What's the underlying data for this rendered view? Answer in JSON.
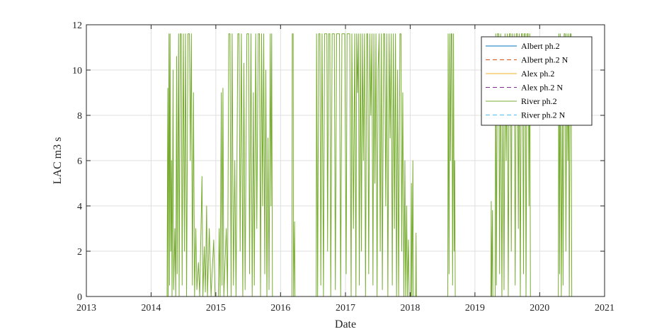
{
  "chart_data": {
    "type": "line",
    "title": "",
    "xlabel": "Date",
    "ylabel": "LAC m3 s",
    "xlim": [
      "2013-01-01",
      "2021-01-01"
    ],
    "ylim": [
      0,
      12
    ],
    "x_ticks": [
      "2013",
      "2014",
      "2015",
      "2016",
      "2017",
      "2018",
      "2019",
      "2020",
      "2021"
    ],
    "y_ticks": [
      "0",
      "2",
      "4",
      "6",
      "8",
      "10",
      "12"
    ],
    "grid": true,
    "legend_position": "top-right",
    "series": [
      {
        "name": "Albert ph.2",
        "color": "#0072BD",
        "dash": "solid",
        "points": []
      },
      {
        "name": "Albert ph.2 N",
        "color": "#D95319",
        "dash": "dashed",
        "points": []
      },
      {
        "name": "Alex ph.2",
        "color": "#EDB120",
        "dash": "solid",
        "points": []
      },
      {
        "name": "Alex ph.2 N",
        "color": "#7E2F8E",
        "dash": "dashed",
        "points": []
      },
      {
        "name": "River ph.2",
        "color": "#77AC30",
        "dash": "solid",
        "points": [
          [
            "2013-01-01",
            0
          ],
          [
            "2014-04-01",
            0
          ],
          [
            "2014-04-05",
            9.2
          ],
          [
            "2014-04-07",
            0
          ],
          [
            "2014-04-12",
            11.6
          ],
          [
            "2014-04-15",
            0.5
          ],
          [
            "2014-04-18",
            11.6
          ],
          [
            "2014-04-22",
            2.0
          ],
          [
            "2014-04-26",
            6.0
          ],
          [
            "2014-04-29",
            0
          ],
          [
            "2014-05-05",
            10.0
          ],
          [
            "2014-05-08",
            0.3
          ],
          [
            "2014-05-15",
            3.0
          ],
          [
            "2014-05-20",
            0
          ],
          [
            "2014-05-25",
            10.6
          ],
          [
            "2014-05-28",
            1.0
          ],
          [
            "2014-06-05",
            11.6
          ],
          [
            "2014-06-08",
            0
          ],
          [
            "2014-06-15",
            11.6
          ],
          [
            "2014-06-20",
            11.6
          ],
          [
            "2014-06-25",
            0.5
          ],
          [
            "2014-07-02",
            11.6
          ],
          [
            "2014-07-08",
            2.0
          ],
          [
            "2014-07-14",
            11.6
          ],
          [
            "2014-07-20",
            0
          ],
          [
            "2014-07-28",
            11.6
          ],
          [
            "2014-08-05",
            11.6
          ],
          [
            "2014-08-10",
            6.0
          ],
          [
            "2014-08-16",
            11.6
          ],
          [
            "2014-08-22",
            0.5
          ],
          [
            "2014-08-28",
            9.0
          ],
          [
            "2014-09-03",
            0
          ],
          [
            "2014-09-10",
            3.0
          ],
          [
            "2014-09-16",
            0.3
          ],
          [
            "2014-09-25",
            1.5
          ],
          [
            "2014-10-02",
            0
          ],
          [
            "2014-10-15",
            5.3
          ],
          [
            "2014-10-20",
            0
          ],
          [
            "2014-10-28",
            2.2
          ],
          [
            "2014-11-03",
            0.2
          ],
          [
            "2014-11-10",
            4.0
          ],
          [
            "2014-11-15",
            0
          ],
          [
            "2014-11-25",
            3.0
          ],
          [
            "2014-12-05",
            0
          ],
          [
            "2014-12-20",
            2.5
          ],
          [
            "2014-12-28",
            0
          ],
          [
            "2015-01-01",
            0
          ],
          [
            "2015-01-15",
            0
          ],
          [
            "2015-01-20",
            3.0
          ],
          [
            "2015-01-25",
            0
          ],
          [
            "2015-02-01",
            9.0
          ],
          [
            "2015-02-05",
            0.5
          ],
          [
            "2015-02-10",
            9.2
          ],
          [
            "2015-02-15",
            0
          ],
          [
            "2015-03-01",
            3.0
          ],
          [
            "2015-03-08",
            0
          ],
          [
            "2015-03-15",
            11.6
          ],
          [
            "2015-03-22",
            11.6
          ],
          [
            "2015-03-28",
            0
          ],
          [
            "2015-04-03",
            11.6
          ],
          [
            "2015-04-10",
            0.5
          ],
          [
            "2015-04-18",
            6.0
          ],
          [
            "2015-04-25",
            0
          ],
          [
            "2015-05-05",
            11.6
          ],
          [
            "2015-05-12",
            11.6
          ],
          [
            "2015-05-18",
            2.0
          ],
          [
            "2015-05-25",
            11.6
          ],
          [
            "2015-06-02",
            0
          ],
          [
            "2015-06-08",
            10.3
          ],
          [
            "2015-06-15",
            0.3
          ],
          [
            "2015-06-25",
            11.6
          ],
          [
            "2015-07-05",
            11.6
          ],
          [
            "2015-07-10",
            1.0
          ],
          [
            "2015-07-18",
            11.6
          ],
          [
            "2015-07-25",
            0
          ],
          [
            "2015-08-01",
            9.0
          ],
          [
            "2015-08-06",
            0.5
          ],
          [
            "2015-08-14",
            11.6
          ],
          [
            "2015-08-20",
            3.0
          ],
          [
            "2015-08-28",
            11.6
          ],
          [
            "2015-09-04",
            11.6
          ],
          [
            "2015-09-10",
            0
          ],
          [
            "2015-09-16",
            11.6
          ],
          [
            "2015-09-22",
            4.0
          ],
          [
            "2015-09-28",
            11.6
          ],
          [
            "2015-10-04",
            1.0
          ],
          [
            "2015-10-10",
            10.0
          ],
          [
            "2015-10-16",
            0
          ],
          [
            "2015-10-22",
            7.0
          ],
          [
            "2015-10-28",
            0.3
          ],
          [
            "2015-11-04",
            11.6
          ],
          [
            "2015-11-08",
            4.0
          ],
          [
            "2015-11-12",
            11.6
          ],
          [
            "2015-11-16",
            0
          ],
          [
            "2016-03-05",
            0
          ],
          [
            "2016-03-07",
            11.6
          ],
          [
            "2016-03-12",
            11.6
          ],
          [
            "2016-03-14",
            0
          ],
          [
            "2016-03-20",
            3.3
          ],
          [
            "2016-03-22",
            0
          ],
          [
            "2016-07-20",
            0
          ],
          [
            "2016-07-22",
            11.6
          ],
          [
            "2016-07-28",
            0
          ],
          [
            "2016-08-03",
            11.6
          ],
          [
            "2016-08-10",
            11.6
          ],
          [
            "2016-08-15",
            0.5
          ],
          [
            "2016-08-22",
            11.6
          ],
          [
            "2016-08-30",
            0
          ],
          [
            "2016-09-05",
            11.6
          ],
          [
            "2016-09-18",
            11.6
          ],
          [
            "2016-09-22",
            2.0
          ],
          [
            "2016-09-28",
            11.6
          ],
          [
            "2016-10-05",
            11.6
          ],
          [
            "2016-10-10",
            0
          ],
          [
            "2016-10-18",
            11.6
          ],
          [
            "2016-10-30",
            11.6
          ],
          [
            "2016-11-05",
            0.3
          ],
          [
            "2016-11-12",
            11.6
          ],
          [
            "2016-11-28",
            11.6
          ],
          [
            "2016-12-05",
            0
          ],
          [
            "2016-12-12",
            11.6
          ],
          [
            "2016-12-28",
            11.6
          ],
          [
            "2017-01-05",
            1.0
          ],
          [
            "2017-01-10",
            11.6
          ],
          [
            "2017-01-25",
            11.6
          ],
          [
            "2017-02-02",
            0
          ],
          [
            "2017-02-06",
            11.6
          ],
          [
            "2017-02-15",
            3.0
          ],
          [
            "2017-02-22",
            11.6
          ],
          [
            "2017-03-01",
            0
          ],
          [
            "2017-03-05",
            11.6
          ],
          [
            "2017-03-10",
            9.0
          ],
          [
            "2017-03-15",
            11.6
          ],
          [
            "2017-03-20",
            0.5
          ],
          [
            "2017-03-26",
            11.6
          ],
          [
            "2017-04-01",
            2.0
          ],
          [
            "2017-04-06",
            11.6
          ],
          [
            "2017-04-12",
            6.0
          ],
          [
            "2017-04-18",
            11.6
          ],
          [
            "2017-04-24",
            0
          ],
          [
            "2017-05-01",
            11.6
          ],
          [
            "2017-05-06",
            11.6
          ],
          [
            "2017-05-12",
            1.0
          ],
          [
            "2017-05-18",
            11.6
          ],
          [
            "2017-05-24",
            8.0
          ],
          [
            "2017-05-30",
            11.6
          ],
          [
            "2017-06-05",
            0.5
          ],
          [
            "2017-06-10",
            11.6
          ],
          [
            "2017-06-16",
            5.0
          ],
          [
            "2017-06-22",
            11.6
          ],
          [
            "2017-06-28",
            0
          ],
          [
            "2017-07-04",
            10.0
          ],
          [
            "2017-07-10",
            11.6
          ],
          [
            "2017-07-16",
            2.0
          ],
          [
            "2017-07-22",
            11.6
          ],
          [
            "2017-07-28",
            0.3
          ],
          [
            "2017-08-04",
            11.6
          ],
          [
            "2017-08-10",
            11.6
          ],
          [
            "2017-08-16",
            4.0
          ],
          [
            "2017-08-22",
            11.6
          ],
          [
            "2017-08-28",
            0
          ],
          [
            "2017-09-04",
            11.6
          ],
          [
            "2017-09-10",
            7.0
          ],
          [
            "2017-09-16",
            11.6
          ],
          [
            "2017-09-22",
            0.5
          ],
          [
            "2017-09-28",
            11.6
          ],
          [
            "2017-10-04",
            3.0
          ],
          [
            "2017-10-10",
            11.6
          ],
          [
            "2017-10-16",
            0
          ],
          [
            "2017-10-22",
            10.0
          ],
          [
            "2017-10-28",
            0
          ],
          [
            "2017-11-04",
            11.6
          ],
          [
            "2017-11-10",
            11.6
          ],
          [
            "2017-11-14",
            2.0
          ],
          [
            "2017-11-20",
            9.0
          ],
          [
            "2017-11-26",
            0
          ],
          [
            "2017-12-02",
            6.0
          ],
          [
            "2017-12-06",
            0
          ],
          [
            "2017-12-12",
            4.0
          ],
          [
            "2017-12-16",
            0
          ],
          [
            "2017-12-22",
            2.5
          ],
          [
            "2017-12-26",
            0
          ],
          [
            "2018-01-05",
            0
          ],
          [
            "2018-01-08",
            5.0
          ],
          [
            "2018-01-11",
            0
          ],
          [
            "2018-01-16",
            6.0
          ],
          [
            "2018-01-19",
            0
          ],
          [
            "2018-02-01",
            0
          ],
          [
            "2018-02-03",
            2.8
          ],
          [
            "2018-02-05",
            0
          ],
          [
            "2018-08-01",
            0
          ],
          [
            "2018-08-03",
            11.6
          ],
          [
            "2018-08-08",
            1.0
          ],
          [
            "2018-08-12",
            11.6
          ],
          [
            "2018-08-16",
            6.0
          ],
          [
            "2018-08-20",
            11.6
          ],
          [
            "2018-08-24",
            11.6
          ],
          [
            "2018-08-28",
            0.5
          ],
          [
            "2018-09-02",
            11.6
          ],
          [
            "2018-09-06",
            2.0
          ],
          [
            "2018-09-09",
            6.0
          ],
          [
            "2018-09-12",
            0
          ],
          [
            "2019-04-01",
            0
          ],
          [
            "2019-04-03",
            4.2
          ],
          [
            "2019-04-05",
            0
          ],
          [
            "2019-04-10",
            3.8
          ],
          [
            "2019-04-12",
            0
          ],
          [
            "2019-04-25",
            0
          ],
          [
            "2019-04-28",
            11.6
          ],
          [
            "2019-05-02",
            0.5
          ],
          [
            "2019-05-08",
            11.6
          ],
          [
            "2019-05-15",
            11.6
          ],
          [
            "2019-05-20",
            1.0
          ],
          [
            "2019-05-26",
            11.6
          ],
          [
            "2019-06-02",
            0
          ],
          [
            "2019-06-08",
            9.0
          ],
          [
            "2019-06-14",
            0.3
          ],
          [
            "2019-06-20",
            11.6
          ],
          [
            "2019-06-26",
            6.0
          ],
          [
            "2019-07-02",
            11.6
          ],
          [
            "2019-07-08",
            0
          ],
          [
            "2019-07-14",
            11.6
          ],
          [
            "2019-07-20",
            11.6
          ],
          [
            "2019-07-25",
            2.0
          ],
          [
            "2019-07-30",
            11.6
          ],
          [
            "2019-08-05",
            8.0
          ],
          [
            "2019-08-10",
            11.6
          ],
          [
            "2019-08-16",
            0.5
          ],
          [
            "2019-08-22",
            11.6
          ],
          [
            "2019-08-28",
            11.6
          ],
          [
            "2019-09-03",
            3.0
          ],
          [
            "2019-09-08",
            11.6
          ],
          [
            "2019-09-14",
            0
          ],
          [
            "2019-09-20",
            11.6
          ],
          [
            "2019-09-26",
            11.6
          ],
          [
            "2019-10-02",
            1.0
          ],
          [
            "2019-10-06",
            11.6
          ],
          [
            "2019-10-12",
            11.6
          ],
          [
            "2019-10-16",
            0
          ],
          [
            "2019-10-22",
            11.6
          ],
          [
            "2019-10-28",
            11.6
          ],
          [
            "2019-11-02",
            4.0
          ],
          [
            "2019-11-06",
            11.6
          ],
          [
            "2019-11-10",
            0
          ],
          [
            "2020-04-15",
            0
          ],
          [
            "2020-04-18",
            11.6
          ],
          [
            "2020-04-22",
            1.0
          ],
          [
            "2020-04-26",
            11.6
          ],
          [
            "2020-05-02",
            0
          ],
          [
            "2020-05-08",
            9.0
          ],
          [
            "2020-05-12",
            0.5
          ],
          [
            "2020-05-18",
            11.6
          ],
          [
            "2020-05-24",
            11.6
          ],
          [
            "2020-05-28",
            2.0
          ],
          [
            "2020-06-03",
            11.6
          ],
          [
            "2020-06-08",
            6.0
          ],
          [
            "2020-06-12",
            11.6
          ],
          [
            "2020-06-16",
            0
          ],
          [
            "2020-06-22",
            11.6
          ],
          [
            "2020-06-26",
            11.6
          ],
          [
            "2020-06-30",
            0
          ],
          [
            "2021-01-01",
            0
          ]
        ]
      },
      {
        "name": "River ph.2 N",
        "color": "#4DBEEE",
        "dash": "dashed",
        "points": []
      }
    ]
  }
}
